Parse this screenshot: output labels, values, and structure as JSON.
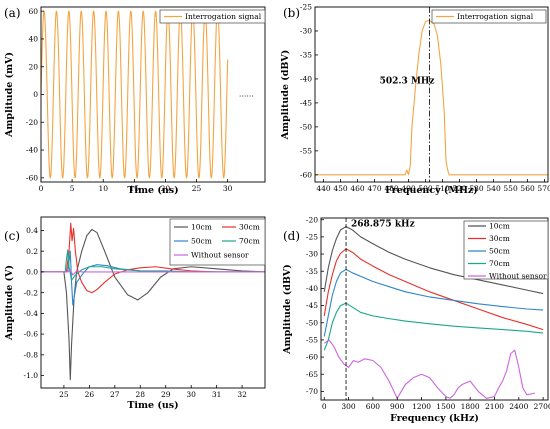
{
  "chart_data": [
    {
      "panel_label": "(a)",
      "type": "line",
      "xlabel": "Time (ns)",
      "ylabel": "Amplitude (mV)",
      "xlim": [
        0,
        36
      ],
      "ylim": [
        -63,
        63
      ],
      "xticks": [
        "0",
        "5",
        "10",
        "15",
        "20",
        "25",
        "30"
      ],
      "xtick_values": [
        0,
        5,
        10,
        15,
        20,
        25,
        30
      ],
      "yticks": [
        "-60",
        "-40",
        "-20",
        "0",
        "20",
        "40",
        "60"
      ],
      "ytick_values": [
        -60,
        -40,
        -20,
        0,
        20,
        40,
        60
      ],
      "legend_position": "top-right",
      "series": [
        {
          "name": "Interrogation signal",
          "color": "#F5A442",
          "signal": {
            "kind": "sine",
            "amplitude": 60,
            "frequency_per_ns": 0.5023,
            "start": 0,
            "end": 30
          }
        }
      ],
      "trailing_dots": {
        "text": "……",
        "x": 33,
        "y": 0
      }
    },
    {
      "panel_label": "(b)",
      "type": "line",
      "xlabel": "Frequency (MHz)",
      "ylabel": "Amplitude (dBV)",
      "xlim": [
        435,
        572
      ],
      "ylim": [
        -61.5,
        -25
      ],
      "xticks": [
        "440",
        "450",
        "460",
        "470",
        "480",
        "490",
        "500",
        "510",
        "520",
        "530",
        "540",
        "550",
        "560",
        "570"
      ],
      "xtick_values": [
        440,
        450,
        460,
        470,
        480,
        490,
        500,
        510,
        520,
        530,
        540,
        550,
        560,
        570
      ],
      "yticks": [
        "-60",
        "-55",
        "-50",
        "-45",
        "-40",
        "-35",
        "-30",
        "-25"
      ],
      "ytick_values": [
        -60,
        -55,
        -50,
        -45,
        -40,
        -35,
        -30,
        -25
      ],
      "legend_position": "top-right",
      "series": [
        {
          "name": "Interrogation signal",
          "color": "#F5A442",
          "x": [
            435,
            488,
            489,
            490,
            491,
            492,
            494,
            496,
            498,
            500,
            502.3,
            505,
            507,
            509,
            511,
            512,
            513,
            514,
            516,
            572
          ],
          "y": [
            -60,
            -60,
            -59,
            -60,
            -58,
            -50,
            -42,
            -35,
            -30,
            -28,
            -27.8,
            -28.5,
            -31,
            -37,
            -47,
            -57,
            -59,
            -60,
            -60,
            -60
          ]
        }
      ],
      "marker_line": {
        "x": 502.3,
        "style": "dash-dot"
      },
      "annotation": {
        "text": "502.3 MHz",
        "x": 473,
        "y": -41
      }
    },
    {
      "panel_label": "(c)",
      "type": "line",
      "xlabel": "Time (us)",
      "ylabel": "Amplitude (V)",
      "xlim": [
        24.1,
        32.9
      ],
      "ylim": [
        -1.12,
        0.53
      ],
      "xticks": [
        "25",
        "26",
        "27",
        "28",
        "29",
        "30",
        "31",
        "32"
      ],
      "xtick_values": [
        25,
        26,
        27,
        28,
        29,
        30,
        31,
        32
      ],
      "yticks": [
        "-1.0",
        "-0.8",
        "-0.6",
        "-0.4",
        "-0.2",
        "0.0",
        "0.2",
        "0.4"
      ],
      "ytick_values": [
        -1.0,
        -0.8,
        -0.6,
        -0.4,
        -0.2,
        0.0,
        0.2,
        0.4
      ],
      "legend_position": "top-right",
      "series": [
        {
          "name": "10cm",
          "color": "#555555",
          "x": [
            24.1,
            25.0,
            25.1,
            25.2,
            25.25,
            25.3,
            25.4,
            25.5,
            25.7,
            25.9,
            26.1,
            26.3,
            26.6,
            27.0,
            27.5,
            27.9,
            28.3,
            28.8,
            29.3,
            30.0,
            31.0,
            32.0,
            32.9
          ],
          "y": [
            0.0,
            0.0,
            -0.2,
            -0.65,
            -1.04,
            -0.7,
            -0.25,
            0.0,
            0.2,
            0.35,
            0.41,
            0.38,
            0.2,
            -0.05,
            -0.22,
            -0.27,
            -0.2,
            -0.05,
            0.03,
            0.05,
            0.03,
            0.01,
            0.0
          ]
        },
        {
          "name": "30cm",
          "color": "#E8312A",
          "x": [
            24.1,
            25.1,
            25.2,
            25.27,
            25.32,
            25.38,
            25.45,
            25.55,
            25.7,
            25.9,
            26.1,
            26.3,
            26.6,
            27.0,
            27.5,
            28.0,
            28.6,
            29.2,
            30.0,
            31.0,
            32.9
          ],
          "y": [
            0.0,
            0.0,
            0.2,
            0.47,
            0.3,
            0.42,
            0.2,
            0.0,
            -0.1,
            -0.18,
            -0.2,
            -0.17,
            -0.1,
            -0.02,
            0.02,
            0.04,
            0.05,
            0.03,
            0.01,
            0.0,
            0.0
          ]
        },
        {
          "name": "50cm",
          "color": "#2E86C8",
          "x": [
            24.1,
            25.15,
            25.2,
            25.25,
            25.3,
            25.35,
            25.4,
            25.5,
            25.65,
            25.8,
            26.0,
            26.3,
            26.7,
            27.2,
            28.0,
            29.0,
            30.0,
            32.9
          ],
          "y": [
            0.0,
            0.0,
            0.1,
            0.2,
            -0.1,
            -0.32,
            -0.25,
            -0.1,
            -0.05,
            0.0,
            0.05,
            0.07,
            0.06,
            0.03,
            0.01,
            0.01,
            0.0,
            0.0
          ]
        },
        {
          "name": "70cm",
          "color": "#1AA88A",
          "x": [
            24.1,
            25.05,
            25.1,
            25.15,
            25.2,
            25.3,
            25.45,
            25.7,
            26.0,
            26.5,
            27.0,
            28.0,
            30.0,
            32.9
          ],
          "y": [
            0.0,
            0.0,
            0.12,
            0.21,
            0.05,
            -0.08,
            -0.03,
            0.02,
            0.05,
            0.05,
            0.03,
            0.01,
            0.0,
            0.0
          ]
        },
        {
          "name": "Without sensor",
          "color": "#CC66DD",
          "x": [
            24.1,
            25.15,
            25.25,
            25.35,
            25.5,
            25.7,
            26.0,
            32.9
          ],
          "y": [
            0.0,
            0.0,
            0.02,
            -0.03,
            0.01,
            0.0,
            0.0,
            0.0
          ]
        }
      ]
    },
    {
      "panel_label": "(d)",
      "type": "line",
      "xlabel": "Frequency (kHz)",
      "ylabel": "Amplitude (dBV)",
      "xlim": [
        -40,
        2760
      ],
      "ylim": [
        -72.5,
        -19.5
      ],
      "xticks": [
        "0",
        "300",
        "600",
        "900",
        "1200",
        "1500",
        "1800",
        "2100",
        "2400",
        "2700"
      ],
      "xtick_values": [
        0,
        300,
        600,
        900,
        1200,
        1500,
        1800,
        2100,
        2400,
        2700
      ],
      "yticks": [
        "-70",
        "-65",
        "-60",
        "-55",
        "-50",
        "-45",
        "-40",
        "-35",
        "-30",
        "-25",
        "-20"
      ],
      "ytick_values": [
        -70,
        -65,
        -60,
        -55,
        -50,
        -45,
        -40,
        -35,
        -30,
        -25,
        -20
      ],
      "legend_position": "top-right",
      "series": [
        {
          "name": "10cm",
          "color": "#555555",
          "x": [
            0,
            50,
            100,
            150,
            200,
            268.875,
            350,
            450,
            600,
            800,
            1000,
            1300,
            1600,
            1900,
            2200,
            2500,
            2700
          ],
          "y": [
            -41,
            -34,
            -29,
            -25.5,
            -23,
            -22,
            -23,
            -25,
            -27,
            -29.5,
            -31.5,
            -34,
            -36,
            -37.5,
            -39,
            -40.5,
            -41.5
          ]
        },
        {
          "name": "30cm",
          "color": "#E8312A",
          "x": [
            0,
            50,
            100,
            150,
            200,
            268.875,
            350,
            450,
            600,
            800,
            1000,
            1300,
            1600,
            1900,
            2200,
            2500,
            2700
          ],
          "y": [
            -48,
            -41,
            -36,
            -32,
            -29.8,
            -28.5,
            -29.5,
            -31.5,
            -33.5,
            -36,
            -38,
            -41,
            -43.5,
            -46,
            -48.5,
            -50.5,
            -52
          ]
        },
        {
          "name": "50cm",
          "color": "#2E86C8",
          "x": [
            0,
            50,
            100,
            150,
            200,
            268.875,
            350,
            450,
            600,
            800,
            1000,
            1300,
            1600,
            1900,
            2200,
            2500,
            2700
          ],
          "y": [
            -54,
            -48,
            -42,
            -38,
            -35.5,
            -34.5,
            -35.5,
            -36.5,
            -38,
            -39.5,
            -41,
            -42.5,
            -43.5,
            -44.5,
            -45.3,
            -46,
            -46.3
          ]
        },
        {
          "name": "70cm",
          "color": "#1AA88A",
          "x": [
            0,
            50,
            100,
            150,
            200,
            268.875,
            350,
            450,
            600,
            800,
            1000,
            1300,
            1600,
            1900,
            2200,
            2500,
            2700
          ],
          "y": [
            -58,
            -55,
            -50,
            -47,
            -45,
            -44.3,
            -45.5,
            -47,
            -48,
            -48.8,
            -49.5,
            -50.3,
            -51,
            -51.5,
            -52,
            -52.5,
            -53
          ]
        },
        {
          "name": "Without sensor",
          "color": "#CC66DD",
          "x": [
            0,
            60,
            120,
            180,
            240,
            300,
            360,
            420,
            500,
            600,
            700,
            800,
            850,
            900,
            950,
            1000,
            1100,
            1200,
            1300,
            1400,
            1500,
            1550,
            1600,
            1650,
            1700,
            1800,
            1900,
            2000,
            2100,
            2150,
            2200,
            2250,
            2300,
            2350,
            2400,
            2450,
            2500,
            2600
          ],
          "y": [
            -56,
            -55,
            -57,
            -60,
            -62,
            -63,
            -61,
            -61.5,
            -60.5,
            -61,
            -63,
            -67,
            -69.5,
            -72,
            -70,
            -68,
            -66,
            -65,
            -66,
            -69,
            -71.5,
            -72,
            -71,
            -69,
            -68,
            -67,
            -70,
            -72,
            -71.5,
            -69,
            -67,
            -64,
            -59,
            -58,
            -63,
            -69,
            -71,
            -70.5
          ]
        }
      ],
      "marker_line": {
        "x": 268.875,
        "style": "dashed"
      },
      "annotation": {
        "text": "268.875 kHz",
        "x": 330,
        "y": -22
      }
    }
  ]
}
